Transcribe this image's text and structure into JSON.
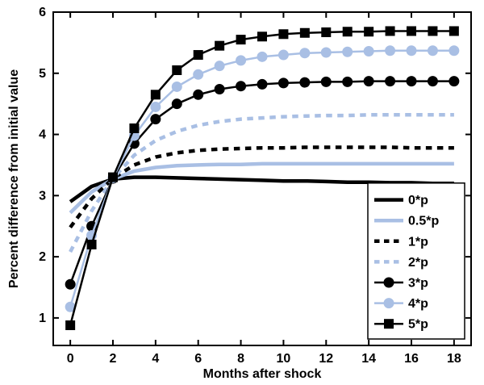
{
  "figure": {
    "background": "#ffffff",
    "axis_color": "#000000",
    "accent_blue": "#a9bfe4"
  },
  "chart_data": {
    "type": "line",
    "title": "",
    "xlabel": "Months after shock",
    "ylabel": "Percent difference from initial value",
    "xlim": [
      -0.8,
      18.8
    ],
    "ylim": [
      0.55,
      6
    ],
    "xticks": [
      0,
      2,
      4,
      6,
      8,
      10,
      12,
      14,
      16,
      18
    ],
    "yticks": [
      1,
      2,
      3,
      4,
      5,
      6
    ],
    "grid": false,
    "legend_position": "lower right",
    "x": [
      0,
      1,
      2,
      3,
      4,
      5,
      6,
      7,
      8,
      9,
      10,
      11,
      12,
      13,
      14,
      15,
      16,
      17,
      18
    ],
    "series": [
      {
        "name": "0*p",
        "color": "#000000",
        "style": "solid",
        "marker": "none",
        "width": 4.5,
        "values": [
          2.9,
          3.15,
          3.27,
          3.3,
          3.3,
          3.29,
          3.28,
          3.27,
          3.26,
          3.25,
          3.24,
          3.24,
          3.23,
          3.22,
          3.22,
          3.21,
          3.21,
          3.2,
          3.2
        ]
      },
      {
        "name": "0.5*p",
        "color": "#a9bfe4",
        "style": "solid",
        "marker": "none",
        "width": 4.5,
        "values": [
          2.72,
          3.06,
          3.27,
          3.4,
          3.46,
          3.49,
          3.5,
          3.51,
          3.51,
          3.52,
          3.52,
          3.52,
          3.52,
          3.52,
          3.52,
          3.52,
          3.52,
          3.52,
          3.52
        ]
      },
      {
        "name": "1*p",
        "color": "#000000",
        "style": "dashed",
        "marker": "none",
        "width": 4.5,
        "values": [
          2.48,
          2.95,
          3.28,
          3.5,
          3.63,
          3.7,
          3.74,
          3.76,
          3.77,
          3.78,
          3.78,
          3.79,
          3.79,
          3.79,
          3.79,
          3.79,
          3.78,
          3.78,
          3.78
        ]
      },
      {
        "name": "2*p",
        "color": "#a9bfe4",
        "style": "dashed",
        "marker": "none",
        "width": 4.5,
        "values": [
          2.08,
          2.75,
          3.28,
          3.66,
          3.9,
          4.05,
          4.15,
          4.21,
          4.25,
          4.27,
          4.29,
          4.3,
          4.31,
          4.31,
          4.32,
          4.32,
          4.32,
          4.32,
          4.32
        ]
      },
      {
        "name": "3*p",
        "color": "#000000",
        "style": "solid",
        "marker": "circle",
        "width": 2.5,
        "values": [
          1.55,
          2.5,
          3.28,
          3.85,
          4.25,
          4.5,
          4.65,
          4.74,
          4.79,
          4.82,
          4.84,
          4.85,
          4.86,
          4.86,
          4.87,
          4.87,
          4.87,
          4.87,
          4.87
        ]
      },
      {
        "name": "4*p",
        "color": "#a9bfe4",
        "style": "solid",
        "marker": "circle",
        "width": 2.5,
        "values": [
          1.18,
          2.35,
          3.29,
          3.98,
          4.45,
          4.78,
          4.98,
          5.12,
          5.21,
          5.27,
          5.3,
          5.33,
          5.34,
          5.35,
          5.36,
          5.37,
          5.37,
          5.37,
          5.37
        ]
      },
      {
        "name": "5*p",
        "color": "#000000",
        "style": "solid",
        "marker": "square",
        "width": 2.5,
        "values": [
          0.88,
          2.2,
          3.3,
          4.1,
          4.65,
          5.05,
          5.3,
          5.45,
          5.55,
          5.6,
          5.64,
          5.66,
          5.67,
          5.68,
          5.68,
          5.69,
          5.69,
          5.69,
          5.69
        ]
      }
    ],
    "legend_labels": [
      "0*p",
      "0.5*p",
      "1*p",
      "2*p",
      "3*p",
      "4*p",
      "5*p"
    ]
  }
}
